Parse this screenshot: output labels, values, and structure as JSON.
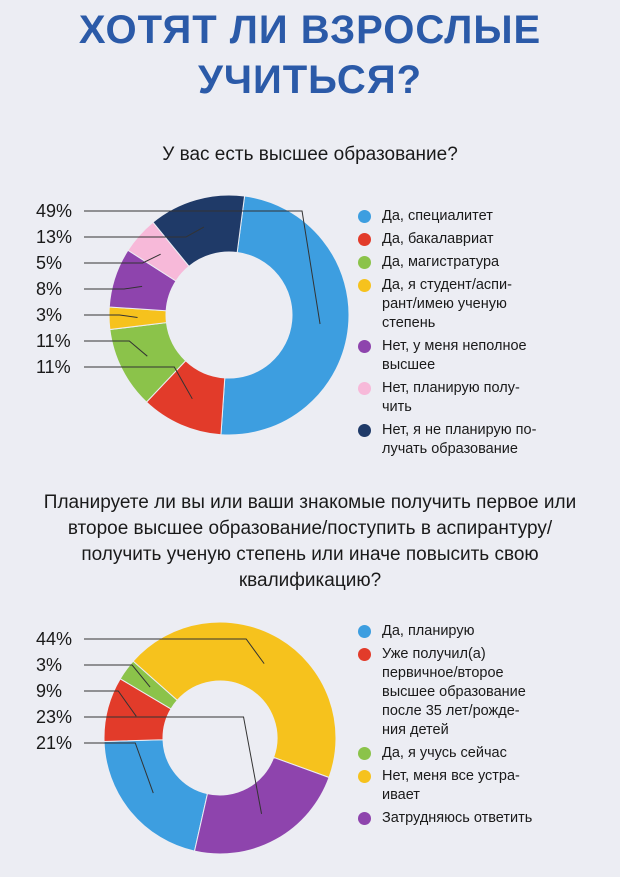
{
  "title": {
    "line1": "ХОТЯТ ЛИ ВЗРОСЛЫЕ",
    "line2": "УЧИТЬСЯ?"
  },
  "colors": {
    "blue": "#3d9ee0",
    "red": "#e23b2a",
    "green": "#8bc34a",
    "yellow": "#f6c21d",
    "purple": "#8e44ad",
    "pink": "#f7b9d9",
    "navy": "#1f3a68",
    "title": "#2b5aa8"
  },
  "chart_data": [
    {
      "type": "pie",
      "donut": true,
      "title": "У вас есть высшее образование?",
      "series": [
        {
          "name": "Да, специалитет",
          "value": 49,
          "label": "49%",
          "color": "#3d9ee0"
        },
        {
          "name": "Да, бакалавриат",
          "value": 11,
          "label": "11%",
          "color": "#e23b2a"
        },
        {
          "name": "Да, магистратура",
          "value": 11,
          "label": "11%",
          "color": "#8bc34a"
        },
        {
          "name": "Да, я студент/аспи-\nрант/имею ученую\nстепень",
          "value": 3,
          "label": "3%",
          "color": "#f6c21d"
        },
        {
          "name": "Нет, у меня неполное\nвысшее",
          "value": 8,
          "label": "8%",
          "color": "#8e44ad"
        },
        {
          "name": "Нет, планирую полу-\nчить",
          "value": 5,
          "label": "5%",
          "color": "#f7b9d9"
        },
        {
          "name": "Нет, я не планирую по-\nлучать образование",
          "value": 13,
          "label": "13%",
          "color": "#1f3a68"
        }
      ]
    },
    {
      "type": "pie",
      "donut": true,
      "title": "Планируете ли вы или ваши знакомые получить первое или второе высшее образование/поступить в аспирантуру/получить ученую степень или иначе повысить свою квалификацию?",
      "series": [
        {
          "name": "Да, планирую",
          "value": 21,
          "label": "21%",
          "color": "#3d9ee0"
        },
        {
          "name": "Уже получил(а)\nпервичное/второе\nвысшее образование\nпосле 35 лет/рожде-\nния детей",
          "value": 9,
          "label": "9%",
          "color": "#e23b2a"
        },
        {
          "name": "Да, я учусь сейчас",
          "value": 3,
          "label": "3%",
          "color": "#8bc34a"
        },
        {
          "name": "Нет, меня все устра-\nивает",
          "value": 44,
          "label": "44%",
          "color": "#f6c21d"
        },
        {
          "name": "Затрудняюсь ответить",
          "value": 23,
          "label": "23%",
          "color": "#8e44ad"
        }
      ]
    }
  ]
}
